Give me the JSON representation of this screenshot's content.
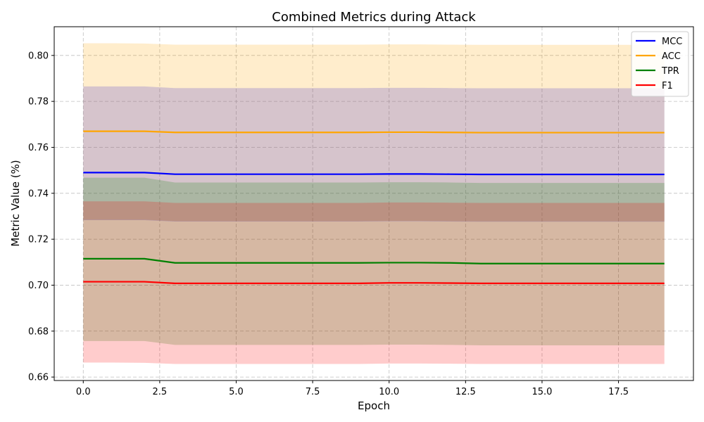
{
  "chart_data": {
    "type": "line",
    "title": "Combined Metrics during Attack",
    "xlabel": "Epoch",
    "ylabel": "Metric Value (%)",
    "xlim": [
      -0.95,
      19.95
    ],
    "ylim": [
      0.6585,
      0.8125
    ],
    "xticks": [
      0.0,
      2.5,
      5.0,
      7.5,
      10.0,
      12.5,
      15.0,
      17.5
    ],
    "xtick_labels": [
      "0.0",
      "2.5",
      "5.0",
      "7.5",
      "10.0",
      "12.5",
      "15.0",
      "17.5"
    ],
    "yticks": [
      0.66,
      0.68,
      0.7,
      0.72,
      0.74,
      0.76,
      0.78,
      0.8
    ],
    "ytick_labels": [
      "0.66",
      "0.68",
      "0.70",
      "0.72",
      "0.74",
      "0.76",
      "0.78",
      "0.80"
    ],
    "grid": true,
    "legend_position": "top-right",
    "x": [
      0,
      1,
      2,
      3,
      4,
      5,
      6,
      7,
      8,
      9,
      10,
      11,
      12,
      13,
      14,
      15,
      16,
      17,
      18,
      19
    ],
    "series": [
      {
        "name": "MCC",
        "color": "#0000ff",
        "values": [
          0.749,
          0.749,
          0.749,
          0.7483,
          0.7483,
          0.7483,
          0.7483,
          0.7483,
          0.7483,
          0.7483,
          0.7484,
          0.7484,
          0.7483,
          0.7482,
          0.7482,
          0.7482,
          0.7482,
          0.7482,
          0.7482,
          0.7482
        ],
        "lower": [
          0.7283,
          0.7283,
          0.7283,
          0.7277,
          0.7277,
          0.7277,
          0.7277,
          0.7277,
          0.7277,
          0.7277,
          0.7278,
          0.7278,
          0.7277,
          0.7276,
          0.7276,
          0.7276,
          0.7276,
          0.7276,
          0.7276,
          0.7276
        ],
        "upper": [
          0.7865,
          0.7865,
          0.7865,
          0.7858,
          0.7858,
          0.7858,
          0.7858,
          0.7858,
          0.7858,
          0.7858,
          0.7859,
          0.7859,
          0.7858,
          0.7857,
          0.7857,
          0.7857,
          0.7857,
          0.7857,
          0.7857,
          0.7857
        ]
      },
      {
        "name": "ACC",
        "color": "#ffa500",
        "values": [
          0.767,
          0.767,
          0.767,
          0.7665,
          0.7665,
          0.7665,
          0.7665,
          0.7665,
          0.7665,
          0.7665,
          0.7666,
          0.7666,
          0.7665,
          0.7664,
          0.7664,
          0.7664,
          0.7664,
          0.7664,
          0.7664,
          0.7664
        ],
        "lower": [
          0.7285,
          0.7285,
          0.7285,
          0.7279,
          0.7279,
          0.7279,
          0.7279,
          0.7279,
          0.7279,
          0.7279,
          0.728,
          0.728,
          0.7279,
          0.7278,
          0.7278,
          0.7278,
          0.7278,
          0.7278,
          0.7278,
          0.7278
        ],
        "upper": [
          0.8053,
          0.8053,
          0.8052,
          0.8047,
          0.8047,
          0.8047,
          0.8047,
          0.8047,
          0.8047,
          0.8047,
          0.8048,
          0.8048,
          0.8047,
          0.8046,
          0.8046,
          0.8046,
          0.8046,
          0.8046,
          0.8046,
          0.8046
        ]
      },
      {
        "name": "TPR",
        "color": "#008000",
        "values": [
          0.7115,
          0.7115,
          0.7115,
          0.7097,
          0.7097,
          0.7097,
          0.7097,
          0.7097,
          0.7097,
          0.7097,
          0.7098,
          0.7098,
          0.7097,
          0.7094,
          0.7094,
          0.7094,
          0.7094,
          0.7094,
          0.7094,
          0.7094
        ],
        "lower": [
          0.6757,
          0.6757,
          0.6757,
          0.674,
          0.674,
          0.674,
          0.674,
          0.674,
          0.674,
          0.674,
          0.6741,
          0.6741,
          0.674,
          0.6738,
          0.6738,
          0.6738,
          0.6738,
          0.6738,
          0.6738,
          0.6738
        ],
        "upper": [
          0.7468,
          0.7468,
          0.7468,
          0.7447,
          0.7447,
          0.7447,
          0.7447,
          0.7447,
          0.7447,
          0.7447,
          0.7448,
          0.7448,
          0.7447,
          0.7445,
          0.7445,
          0.7445,
          0.7445,
          0.7445,
          0.7445,
          0.7445
        ]
      },
      {
        "name": "F1",
        "color": "#ff0000",
        "values": [
          0.7015,
          0.7015,
          0.7015,
          0.7008,
          0.7008,
          0.7008,
          0.7008,
          0.7008,
          0.7008,
          0.7008,
          0.701,
          0.701,
          0.7009,
          0.7008,
          0.7008,
          0.7008,
          0.7008,
          0.7008,
          0.7008,
          0.7008
        ],
        "lower": [
          0.6663,
          0.6663,
          0.6662,
          0.6657,
          0.6657,
          0.6657,
          0.6657,
          0.6657,
          0.6657,
          0.6657,
          0.6659,
          0.6659,
          0.6658,
          0.6657,
          0.6657,
          0.6657,
          0.6657,
          0.6657,
          0.6657,
          0.6657
        ],
        "upper": [
          0.7365,
          0.7365,
          0.7365,
          0.7358,
          0.7358,
          0.7358,
          0.7358,
          0.7358,
          0.7358,
          0.7358,
          0.736,
          0.736,
          0.7359,
          0.7358,
          0.7358,
          0.7358,
          0.7358,
          0.7358,
          0.7358,
          0.7358
        ]
      }
    ]
  }
}
